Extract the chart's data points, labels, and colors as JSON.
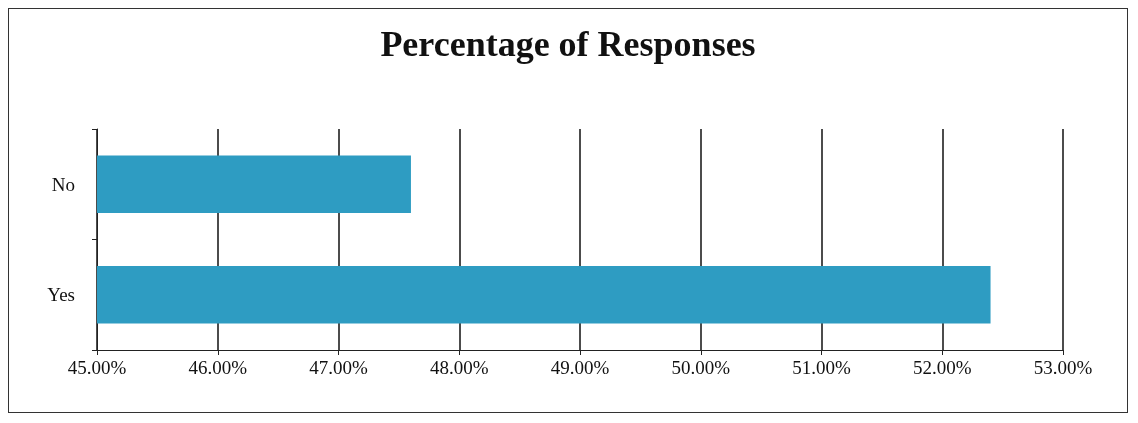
{
  "chart_data": {
    "type": "bar",
    "orientation": "horizontal",
    "title": "Percentage of Responses",
    "categories": [
      "No",
      "Yes"
    ],
    "values": [
      47.6,
      52.4
    ],
    "color": "#2e9cc2",
    "xlim": [
      45,
      53
    ],
    "xticks": [
      {
        "value": 45,
        "label": "45.00%"
      },
      {
        "value": 46,
        "label": "46.00%"
      },
      {
        "value": 47,
        "label": "47.00%"
      },
      {
        "value": 48,
        "label": "48.00%"
      },
      {
        "value": 49,
        "label": "49.00%"
      },
      {
        "value": 50,
        "label": "50.00%"
      },
      {
        "value": 51,
        "label": "51.00%"
      },
      {
        "value": 52,
        "label": "52.00%"
      },
      {
        "value": 53,
        "label": "53.00%"
      }
    ],
    "grid": "x"
  }
}
